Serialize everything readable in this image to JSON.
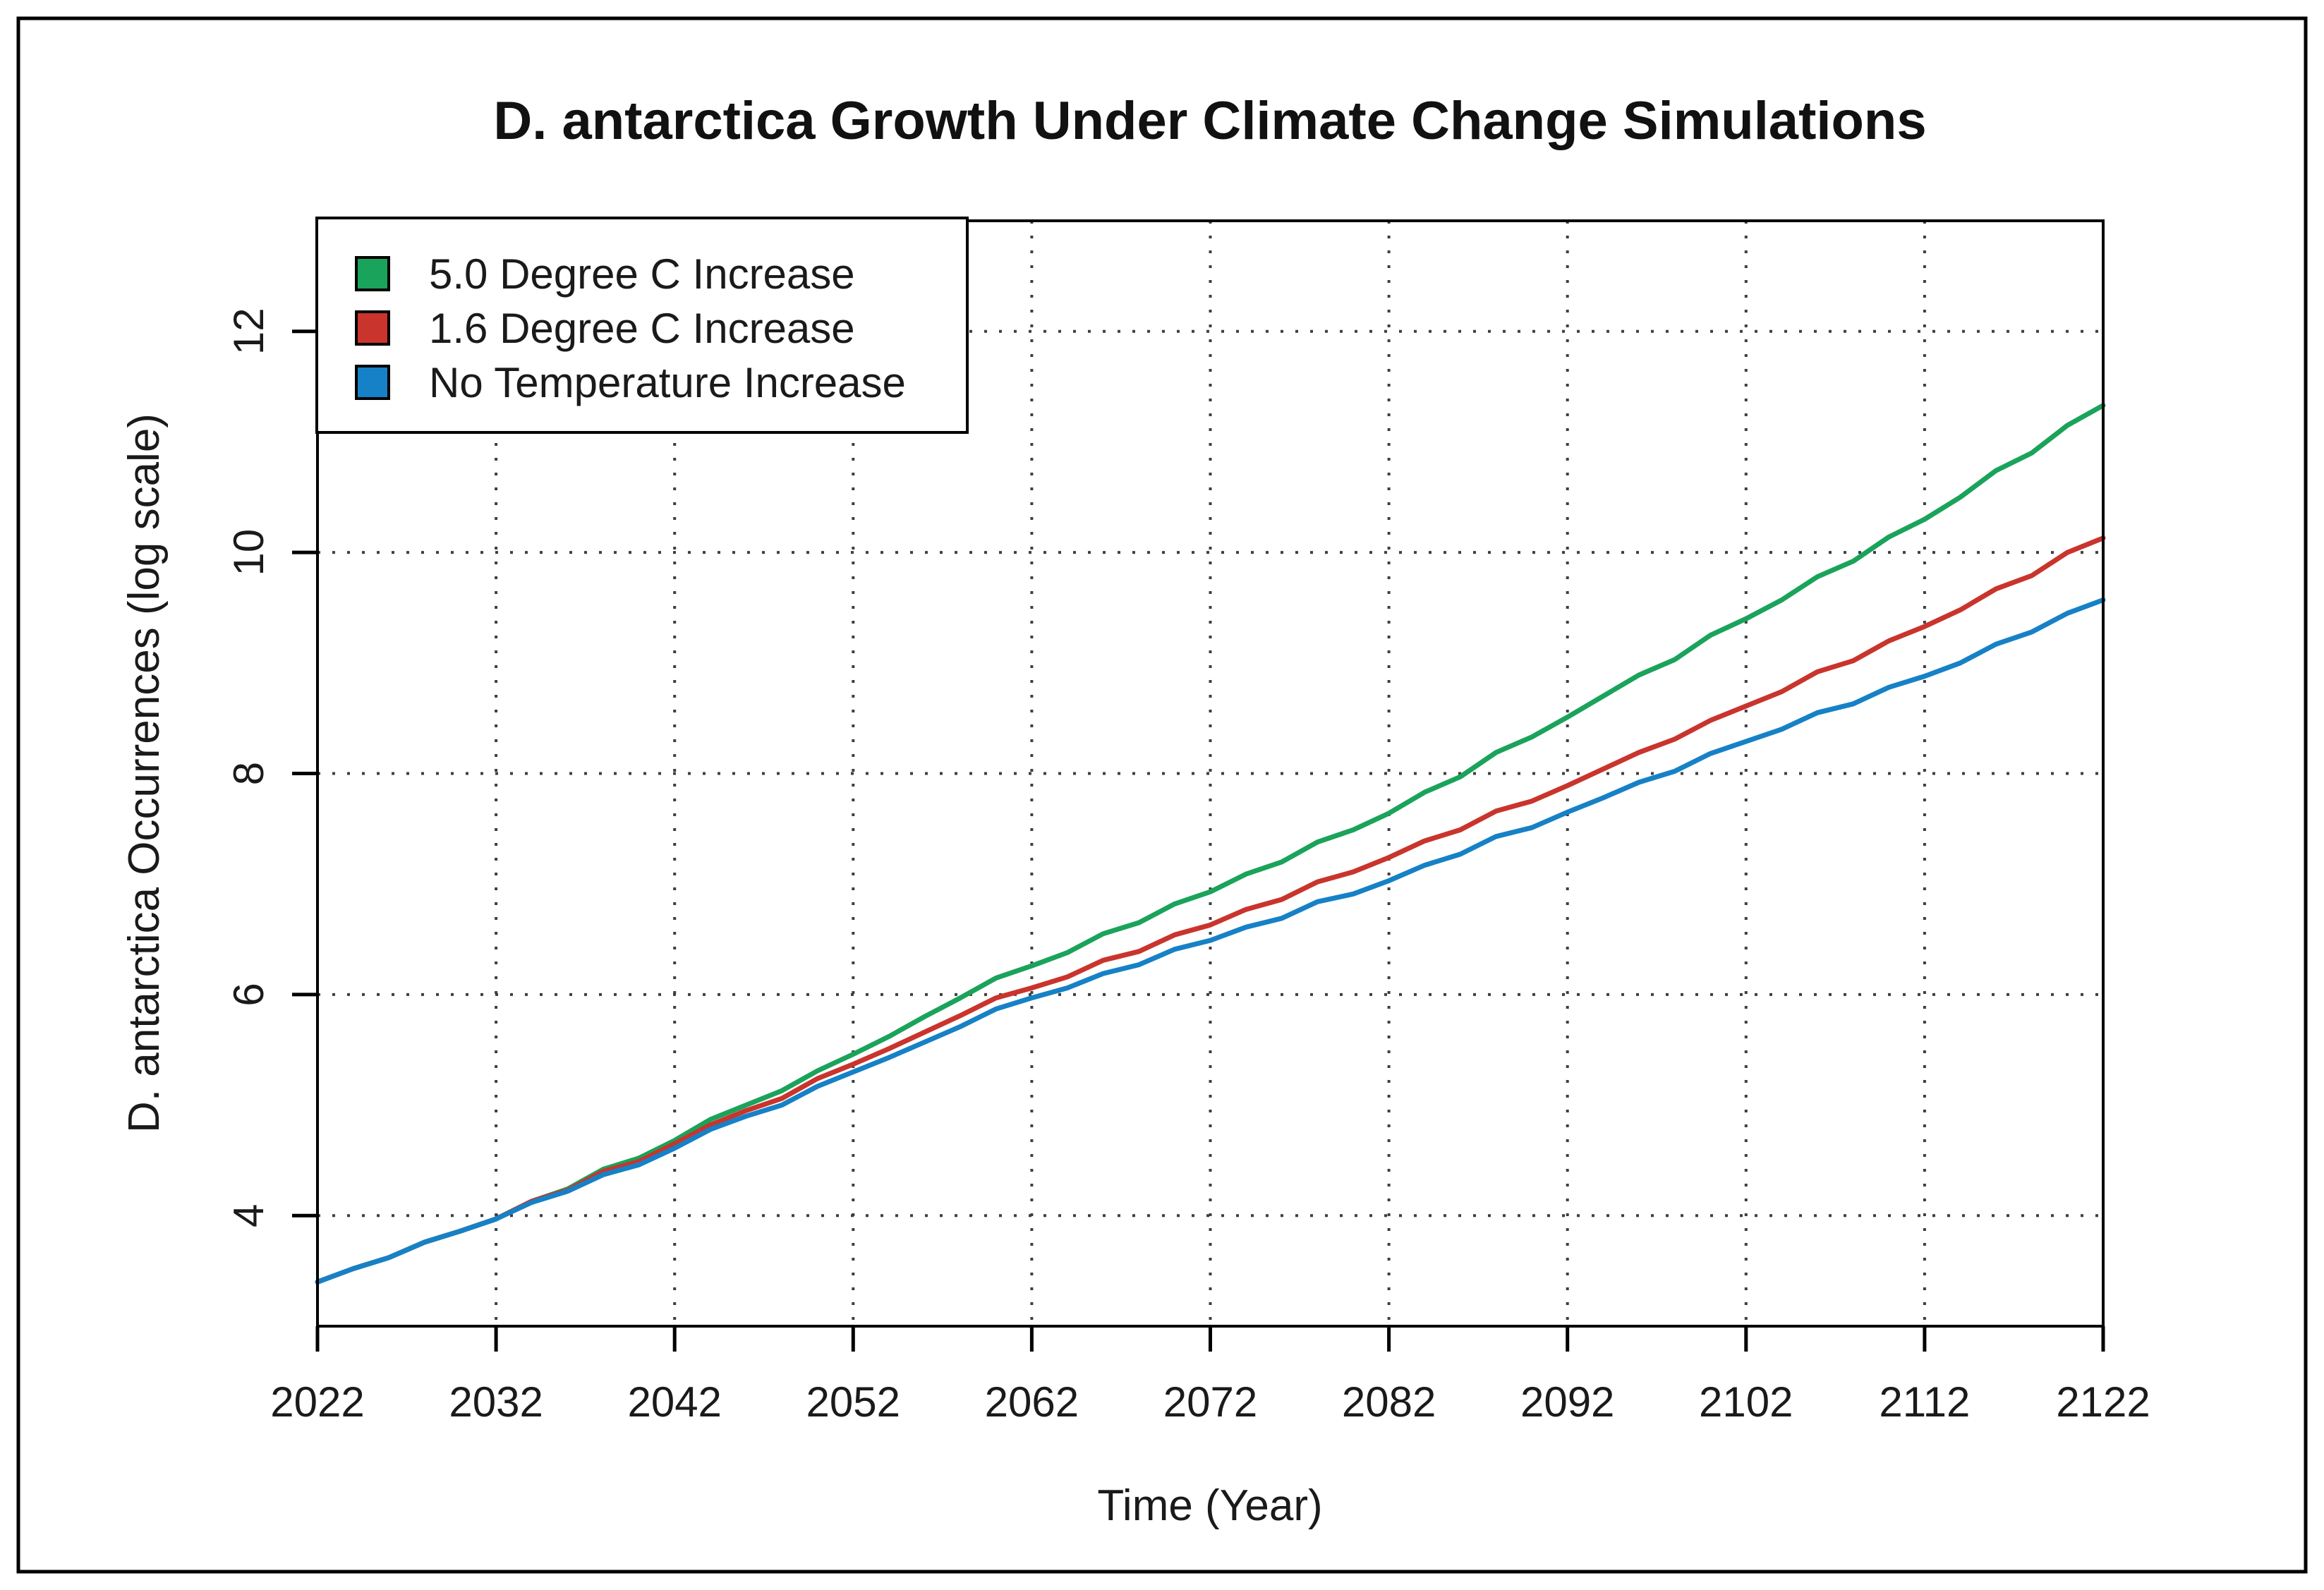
{
  "figure": {
    "background": "#ffffff",
    "frame_color": "#000000"
  },
  "chart_data": {
    "type": "line",
    "title": "D. antarctica Growth Under Climate Change Simulations",
    "xlabel": "Time (Year)",
    "ylabel": "D. antarctica Occurrences (log scale)",
    "xlim": [
      2022,
      2122
    ],
    "ylim": [
      3,
      13
    ],
    "x_ticks": [
      2022,
      2032,
      2042,
      2052,
      2062,
      2072,
      2082,
      2092,
      2102,
      2112,
      2122
    ],
    "y_ticks": [
      4,
      6,
      8,
      10,
      12
    ],
    "grid": "dotted",
    "grid_color": "#3f3f3f",
    "legend_position": "top-left",
    "x": [
      2022,
      2024,
      2026,
      2028,
      2030,
      2032,
      2034,
      2036,
      2038,
      2040,
      2042,
      2044,
      2046,
      2048,
      2050,
      2052,
      2054,
      2056,
      2058,
      2060,
      2062,
      2064,
      2066,
      2068,
      2070,
      2072,
      2074,
      2076,
      2078,
      2080,
      2082,
      2084,
      2086,
      2088,
      2090,
      2092,
      2094,
      2096,
      2098,
      2100,
      2102,
      2104,
      2106,
      2108,
      2110,
      2112,
      2114,
      2116,
      2118,
      2120,
      2122
    ],
    "series": [
      {
        "name": "5.0 Degree C Increase",
        "color": "#1aa35a",
        "values": [
          3.4,
          3.52,
          3.62,
          3.76,
          3.86,
          3.97,
          4.13,
          4.24,
          4.42,
          4.52,
          4.68,
          4.87,
          5.0,
          5.13,
          5.31,
          5.46,
          5.62,
          5.8,
          5.97,
          6.15,
          6.26,
          6.38,
          6.55,
          6.65,
          6.82,
          6.93,
          7.09,
          7.2,
          7.38,
          7.49,
          7.64,
          7.83,
          7.97,
          8.19,
          8.33,
          8.51,
          8.7,
          8.89,
          9.03,
          9.25,
          9.4,
          9.57,
          9.78,
          9.92,
          10.14,
          10.3,
          10.5,
          10.74,
          10.9,
          11.15,
          11.33
        ]
      },
      {
        "name": "1.6 Degree C Increase",
        "color": "#c9342c",
        "values": [
          3.4,
          3.52,
          3.62,
          3.76,
          3.86,
          3.97,
          4.13,
          4.23,
          4.4,
          4.49,
          4.65,
          4.82,
          4.95,
          5.06,
          5.24,
          5.37,
          5.51,
          5.66,
          5.81,
          5.97,
          6.06,
          6.16,
          6.31,
          6.39,
          6.54,
          6.63,
          6.77,
          6.86,
          7.02,
          7.11,
          7.24,
          7.39,
          7.49,
          7.66,
          7.75,
          7.89,
          8.04,
          8.19,
          8.31,
          8.48,
          8.61,
          8.74,
          8.92,
          9.02,
          9.2,
          9.33,
          9.48,
          9.67,
          9.79,
          10.0,
          10.13
        ]
      },
      {
        "name": "No Temperature Increase",
        "color": "#1681c6",
        "values": [
          3.4,
          3.52,
          3.62,
          3.76,
          3.86,
          3.97,
          4.12,
          4.22,
          4.37,
          4.46,
          4.61,
          4.78,
          4.9,
          5.0,
          5.17,
          5.3,
          5.43,
          5.57,
          5.71,
          5.87,
          5.97,
          6.06,
          6.19,
          6.27,
          6.41,
          6.49,
          6.61,
          6.69,
          6.84,
          6.91,
          7.03,
          7.17,
          7.27,
          7.43,
          7.51,
          7.65,
          7.78,
          7.92,
          8.02,
          8.18,
          8.29,
          8.4,
          8.55,
          8.63,
          8.78,
          8.88,
          9.0,
          9.17,
          9.28,
          9.45,
          9.57
        ]
      }
    ]
  }
}
